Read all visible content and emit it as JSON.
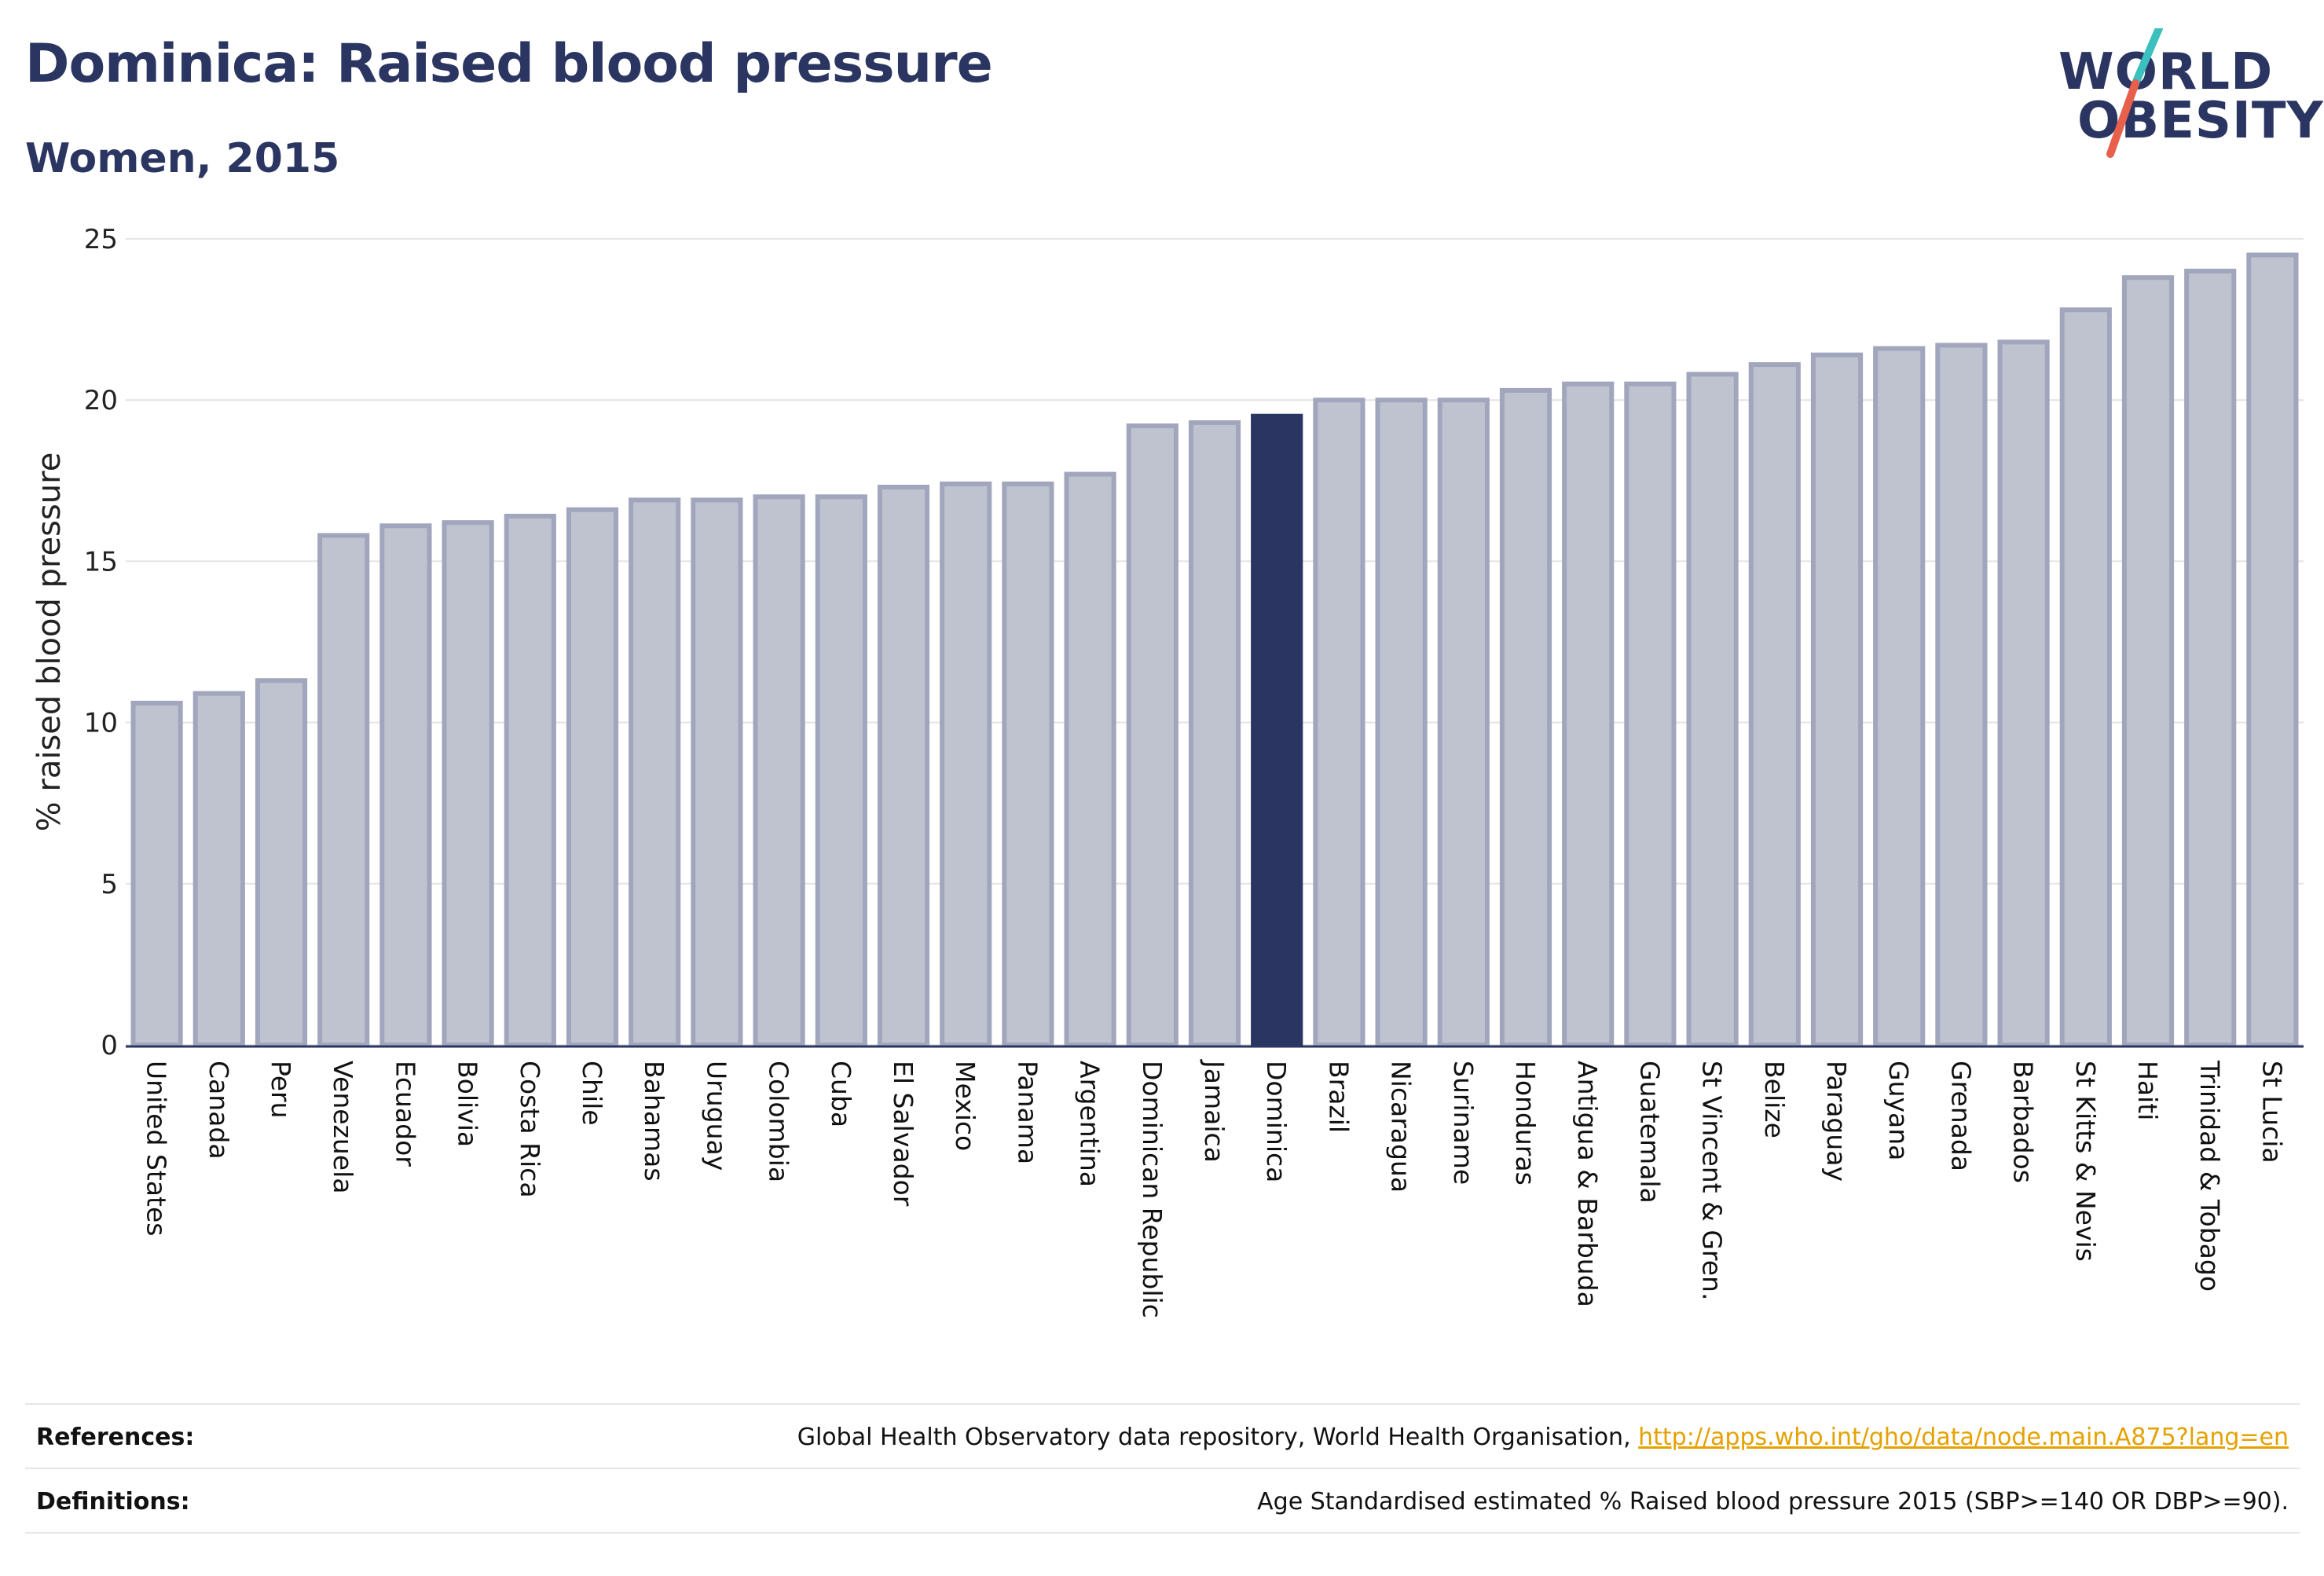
{
  "header": {
    "title": "Dominica: Raised blood pressure",
    "subtitle": "Women, 2015"
  },
  "logo": {
    "line1": "WORLD",
    "line2": "OBESITY",
    "colors": {
      "text": "#2b3561",
      "slash_top": "#3bbfbf",
      "slash_bottom": "#e8604c"
    }
  },
  "chart_data": {
    "type": "bar",
    "title": "Dominica: Raised blood pressure",
    "subtitle": "Women, 2015",
    "xlabel": "",
    "ylabel": "% raised blood pressure",
    "ylim": [
      0,
      25
    ],
    "yticks": [
      0,
      5,
      10,
      15,
      20,
      25
    ],
    "grid": true,
    "highlight": "Dominica",
    "colors": {
      "bar": "#bfc2cf",
      "bar_border": "#a1a6bd",
      "highlight": "#2b3561"
    },
    "categories": [
      "United States",
      "Canada",
      "Peru",
      "Venezuela",
      "Ecuador",
      "Bolivia",
      "Costa Rica",
      "Chile",
      "Bahamas",
      "Uruguay",
      "Colombia",
      "Cuba",
      "El Salvador",
      "Mexico",
      "Panama",
      "Argentina",
      "Dominican Republic",
      "Jamaica",
      "Dominica",
      "Brazil",
      "Nicaragua",
      "Suriname",
      "Honduras",
      "Antigua & Barbuda",
      "Guatemala",
      "St Vincent & Gren.",
      "Belize",
      "Paraguay",
      "Guyana",
      "Grenada",
      "Barbados",
      "St Kitts & Nevis",
      "Haiti",
      "Trinidad & Tobago",
      "St Lucia"
    ],
    "values": [
      10.6,
      10.9,
      11.3,
      15.8,
      16.1,
      16.2,
      16.4,
      16.6,
      16.9,
      16.9,
      17.0,
      17.0,
      17.3,
      17.4,
      17.4,
      17.7,
      19.2,
      19.3,
      19.5,
      20.0,
      20.0,
      20.0,
      20.3,
      20.5,
      20.5,
      20.8,
      21.1,
      21.4,
      21.6,
      21.7,
      21.8,
      22.8,
      23.8,
      24.0,
      24.5
    ]
  },
  "footer": {
    "references_label": "References:",
    "references_text": "Global Health Observatory data repository, World Health Organisation, ",
    "references_link": "http://apps.who.int/gho/data/node.main.A875?lang=en",
    "definitions_label": "Definitions:",
    "definitions_text": "Age Standardised estimated % Raised blood pressure 2015 (SBP>=140 OR DBP>=90)."
  }
}
